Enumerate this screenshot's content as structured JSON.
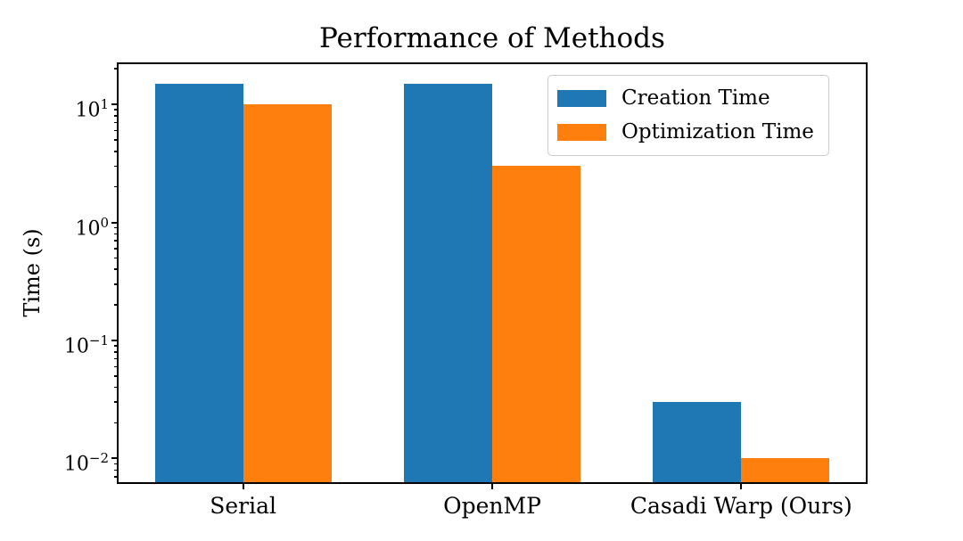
{
  "chart_data": {
    "type": "bar",
    "title": "Performance of Methods",
    "xlabel": "",
    "ylabel": "Time (s)",
    "categories": [
      "Serial",
      "OpenMP",
      "Casadi Warp (Ours)"
    ],
    "series": [
      {
        "name": "Creation Time",
        "color": "#1f77b4",
        "values": [
          15,
          15,
          0.03
        ]
      },
      {
        "name": "Optimization Time",
        "color": "#ff7f0e",
        "values": [
          10,
          3,
          0.01
        ]
      }
    ],
    "yscale": "log",
    "ylim": [
      0.0063,
      21.9
    ],
    "y_tick_exponents": [
      1,
      0,
      -1,
      -2
    ],
    "legend_position": "upper right",
    "grid": false,
    "background_color": "#ffffff",
    "axis_color": "#000000"
  }
}
